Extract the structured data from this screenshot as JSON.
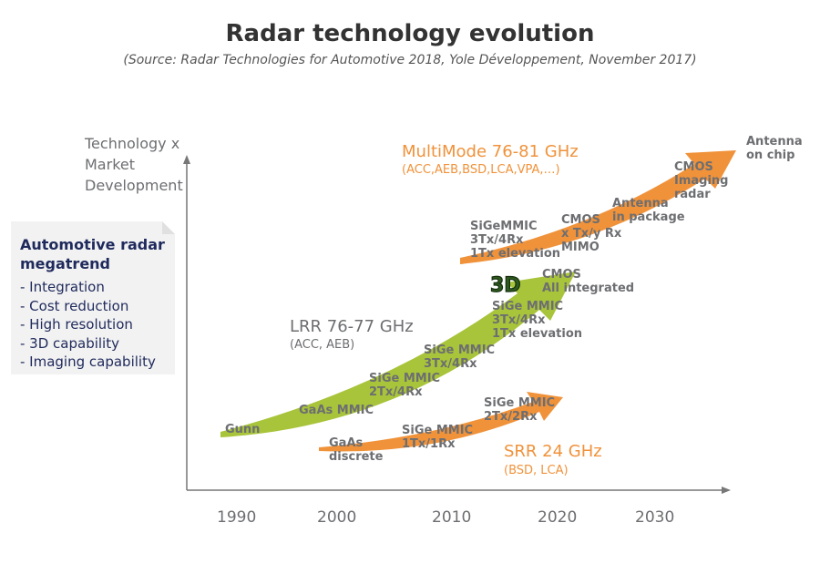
{
  "title": "Radar technology evolution",
  "subtitle": "(Source: Radar Technologies for Automotive 2018, Yole Développement, November 2017)",
  "y_axis_label": "Technology x\nMarket\nDevelopment",
  "x_axis_ticks": [
    "1990",
    "2000",
    "2010",
    "2020",
    "2030"
  ],
  "megatrend": {
    "title": "Automotive radar\nmegatrend",
    "items": [
      "- Integration",
      "- Cost reduction",
      "- High resolution",
      "- 3D capability",
      "- Imaging capability"
    ]
  },
  "tracks": {
    "lrr": {
      "name": "LRR 76-77 GHz",
      "apps": "(ACC, AEB)",
      "color": "#a8c43a",
      "milestones": [
        "Gunn",
        "GaAs MMIC",
        "SiGe MMIC\n2Tx/4Rx",
        "SiGe MMIC\n3Tx/4Rx",
        "SiGe MMIC\n3Tx/4Rx\n1Tx elevation",
        "CMOS\nAll integrated"
      ]
    },
    "srr": {
      "name": "SRR 24 GHz",
      "apps": "(BSD, LCA)",
      "color": "#f0923a",
      "milestones": [
        "GaAs\ndiscrete",
        "SiGe MMIC\n1Tx/1Rx",
        "SiGe MMIC\n2Tx/2Rx"
      ]
    },
    "multimode": {
      "name": "MultiMode 76-81 GHz",
      "apps": "(ACC,AEB,BSD,LCA,VPA,…)",
      "color": "#f0923a",
      "milestones": [
        "SiGeMMIC\n3Tx/4Rx\n1Tx elevation",
        "CMOS\nx Tx/y Rx\nMIMO",
        "Antenna\nin package",
        "CMOS\nImaging\nradar",
        "Antenna\non chip"
      ]
    }
  },
  "badge_3d": "3D"
}
